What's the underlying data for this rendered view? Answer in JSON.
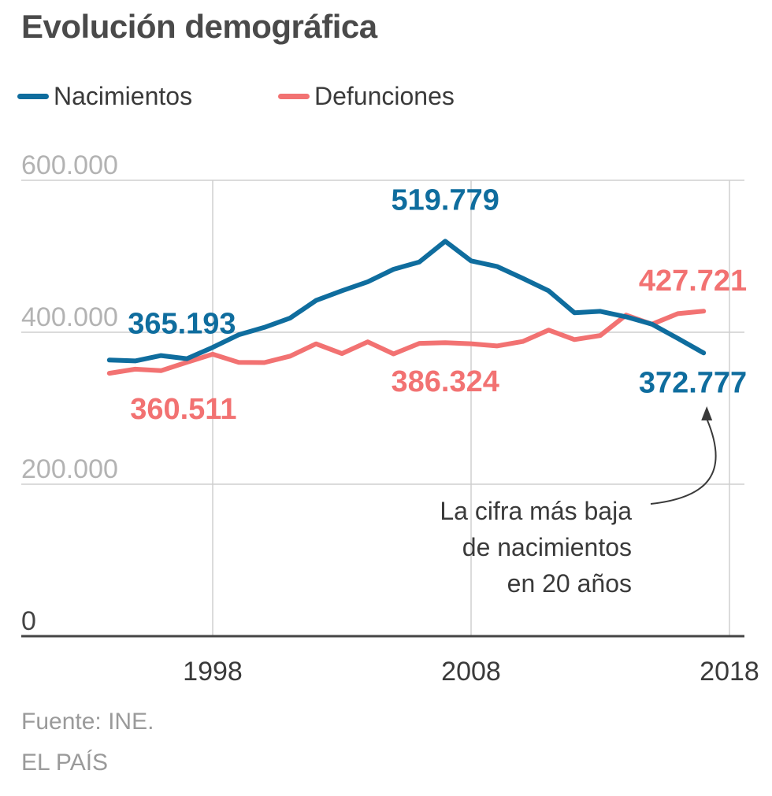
{
  "colors": {
    "births": "#0f6d9e",
    "deaths": "#f27272",
    "grid": "#cfcfcf",
    "axis": "#444444"
  },
  "source": {
    "line1": "Fuente: INE.",
    "line2": "EL PAÍS"
  },
  "chart_data": {
    "type": "line",
    "title": "Evolución demográfica",
    "x": [
      1994,
      1995,
      1996,
      1997,
      1998,
      1999,
      2000,
      2001,
      2002,
      2003,
      2004,
      2005,
      2006,
      2007,
      2008,
      2009,
      2010,
      2011,
      2012,
      2013,
      2014,
      2015,
      2016,
      2017,
      2018
    ],
    "series": [
      {
        "name": "Nacimientos",
        "key": "births",
        "values": [
          363400,
          362300,
          369300,
          365193,
          380100,
          396600,
          406400,
          418800,
          441900,
          454600,
          466400,
          482900,
          492500,
          519779,
          494000,
          486600,
          471000,
          454600,
          425700,
          427600,
          420300,
          410600,
          391900,
          372777,
          null
        ]
      },
      {
        "name": "Defunciones",
        "key": "deaths",
        "values": [
          346000,
          351400,
          349400,
          360511,
          371100,
          360400,
          360100,
          368600,
          384800,
          371900,
          387400,
          371500,
          385400,
          386324,
          384900,
          382000,
          387900,
          402900,
          390400,
          395800,
          422600,
          410600,
          424500,
          427721,
          null
        ]
      }
    ],
    "data_labels": [
      {
        "text": "365.193",
        "series": "births",
        "anchor_x": 1997
      },
      {
        "text": "360.511",
        "series": "deaths",
        "anchor_x": 1997
      },
      {
        "text": "519.779",
        "series": "births",
        "anchor_x": 2007
      },
      {
        "text": "386.324",
        "series": "deaths",
        "anchor_x": 2007
      },
      {
        "text": "427.721",
        "series": "deaths",
        "anchor_x": 2017
      },
      {
        "text": "372.777",
        "series": "births",
        "anchor_x": 2017
      }
    ],
    "annotation": {
      "lines": [
        "La cifra más baja",
        "de nacimientos",
        "en 20 años"
      ],
      "points_to_x": 2017,
      "points_to_series": "births"
    },
    "yticks": [
      0,
      200000,
      400000,
      600000
    ],
    "ytick_labels": [
      "0",
      "200.000",
      "400.000",
      "600.000"
    ],
    "xticks": [
      1998,
      2008,
      2018
    ],
    "xtick_labels": [
      "1998",
      "2008",
      "2018"
    ],
    "xlim": [
      1991,
      2018
    ],
    "ylim": [
      0,
      600000
    ],
    "xlabel": "",
    "ylabel": "",
    "grid": true,
    "legend_position": "top-left"
  }
}
